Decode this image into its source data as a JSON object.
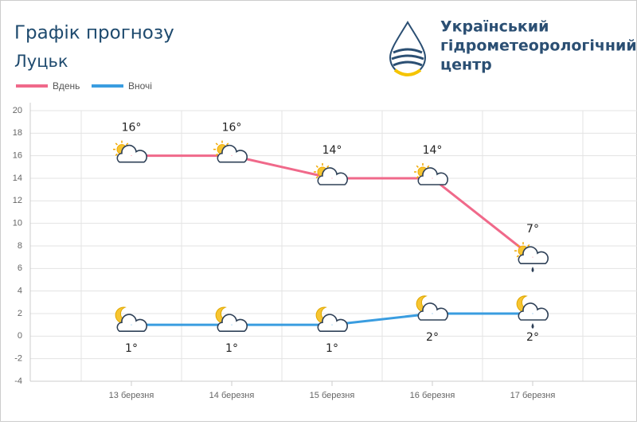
{
  "chart_data": {
    "type": "line",
    "title": "Графік прогнозу",
    "subtitle": "Луцьк",
    "organization": [
      "Український",
      "гідрометеорологічний",
      "центр"
    ],
    "categories": [
      "13 березня",
      "14 березня",
      "15 березня",
      "16 березня",
      "17 березня"
    ],
    "series": [
      {
        "name": "Вдень",
        "color": "#f0698a",
        "values": [
          16,
          16,
          14,
          14,
          7
        ],
        "value_labels": [
          "16°",
          "16°",
          "14°",
          "14°",
          "7°"
        ]
      },
      {
        "name": "Вночі",
        "color": "#3a9de0",
        "values": [
          1,
          1,
          1,
          2,
          2
        ],
        "value_labels": [
          "1°",
          "1°",
          "1°",
          "2°",
          "2°"
        ]
      }
    ],
    "ylim": [
      -4,
      20
    ],
    "yticks": [
      -4,
      -2,
      0,
      2,
      4,
      6,
      8,
      10,
      12,
      14,
      16,
      18,
      20
    ],
    "grid": true
  }
}
